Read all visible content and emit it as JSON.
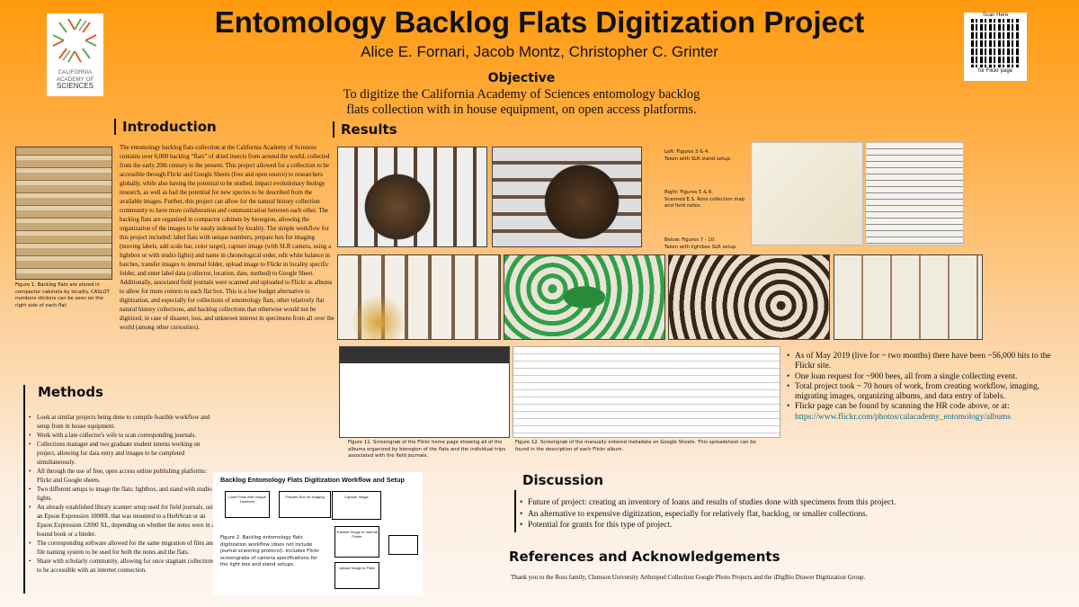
{
  "header": {
    "title": "Entomology Backlog Flats Digitization Project",
    "authors": "Alice E. Fornari, Jacob Montz, Christopher C. Grinter",
    "objective_heading": "Objective",
    "objective_text": "To digitize the California Academy of Sciences entomology backlog flats collection with in house equipment, on open access platforms."
  },
  "logo": {
    "line1": "CALIFORNIA",
    "line2": "ACADEMY OF",
    "line3": "SCIENCES"
  },
  "qr": {
    "top": "Scan Here",
    "bottom": "for Flickr page",
    "icon": "qr-code"
  },
  "introduction": {
    "heading": "Introduction",
    "text": "The entomology backlog flats collection at the California Academy of Sciences contains over 6,000 backlog “flats” of dried insects from around the world, collected from the early 20th century to the present. This project allowed for a collection to be accessible through Flickr and Google Sheets (free and open source) to researchers globally, while also having the potential to be studied, impact evolutionary biology research, as well as had the potential for new species to be described from the available images. Further, this project can allow for the natural history collection community to have more collaboration and communication between each other. The backlog flats are organized in compactor cabinets by bioregion, allowing the organization of the images to be easily indexed by locality. The simple workflow for this project included: label flats with unique numbers, prepare box for imaging (moving labels, add scale bar, color target), capture image (with SLR camera, using a lightbox or with studio lights) and name in chronological order, edit white balance in batches, transfer images to internal folder, upload image to Flickr in locality specific folder, and enter label data (collector, location, date, method) to Google Sheet. Additionally, associated field journals were scanned and uploaded to Flickr as albums to allow for more context to each flat box. This is a low budget alternative to digitization, and especially for collections of entomology flats, other relatively flat natural history collections, and backlog collections that otherwise would not be digitized, in case of disaster, loss, and unknown interest in specimens from all over the world (among other curiosities).",
    "figure1_caption": "Figure 1. Backlog flats are stored in compactor cabinets by locality. CASLOT numbers stickers can be seen on the right side of each flat."
  },
  "methods": {
    "heading": "Methods",
    "items": [
      "Look at similar projects being done to compile feasible workflow and setup from in house equipment.",
      "Work with a late collector's wife to scan corresponding journals.",
      "Collections manager and two graduate student interns working on project, allowing for data entry and images to be completed simultaneously.",
      "All through the use of free, open access online publishing platforms: Flickr and Google sheets.",
      "Two different setups to image the flats: lightbox, and stand with studio lights.",
      "An already established library scanner setup used for field journals, using an Epson Expression 10000L that was mounted to a HerbScan or an Epson Expression 12000 XL, depending on whether the notes were in a bound book or a binder.",
      "The corresponding software allowed for the same migration of files and file naming system to be used for both the notes and the flats.",
      "Share with scholarly community, allowing for once stagnant collections to be accessible with an internet connection."
    ]
  },
  "results": {
    "heading": "Results",
    "note_left_1": "Left: Figures 3 & 4.",
    "note_left_2": "Taken with SLR stand setup.",
    "note_right_1": "Right: Figures 5 & 6.",
    "note_right_2": "Scanned E.S. Ross collection map and field notes.",
    "note_below_1": "Below: Figures 7 - 10.",
    "note_below_2": "Taken with lightbox SLR setup.",
    "figure11_caption": "Figure 11. Screengrab of the Flickr home page showing all of the albums organized by bioregion of the flats and the individual trips associated with the field journals.",
    "figure12_caption": "Figure 12. Screengrab of the manually entered metadata on Google Sheets. This spreadsheet can be found in the description of each Flickr album.",
    "items": [
      "As of May 2019 (live for ~ two months) there have been ~56,000 hits to the Flickr site.",
      "One loan request for ~900 bees, all from a single collecting event.",
      "Total project took ~ 70 hours of work, from creating workflow, imaging, migrating images, organizing albums, and data entry of labels.",
      "Flickr page can be found by scanning the HR code above, or at:"
    ],
    "link": "https://www.flickr.com/photos/calacademy_entomology/albums"
  },
  "workflow": {
    "title": "Backlog Entomology Flats Digitization Workflow and Setup",
    "boxes": [
      "Label Flats with Unique Numbers",
      "Prepare Box for Imaging",
      "Capture Image",
      "Transfer Image to Internal Folder",
      "Upload Image to Flickr"
    ],
    "figure2_caption": "Figure 2. Backlog entomology flats digitization workflow (does not include journal scanning protocol). Includes Flickr screengrabs of camera specifications for the light box and stand setups."
  },
  "discussion": {
    "heading": "Discussion",
    "items": [
      "Future of project: creating an inventory of loans and results of studies done with specimens from this project.",
      "An alternative to expensive digitization, especially for relatively flat, backlog, or smaller collections.",
      "Potential for grants for this type of project."
    ]
  },
  "references": {
    "heading": "References and Acknowledgements",
    "text": "Thank you to the Ross family, Clemson University Arthropod Collection Google Photo Projects and the iDigBio Drawer Digitization Group."
  }
}
